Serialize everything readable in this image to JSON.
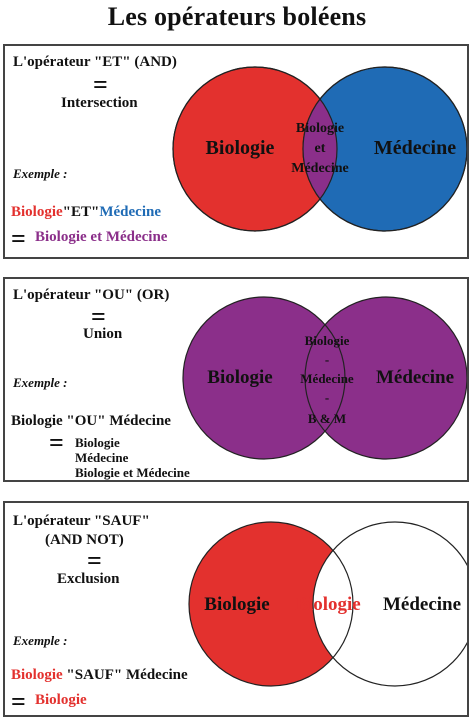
{
  "title": "Les opérateurs boléens",
  "colors": {
    "red": "#e3312e",
    "blue": "#1f6bb5",
    "purple": "#8b2f8a",
    "white": "#ffffff",
    "border": "#333333"
  },
  "panels": [
    {
      "operator": "L'opérateur \"ET\" (AND)",
      "equals": "=",
      "name": "Intersection",
      "example_label": "Exemple :",
      "example": {
        "left": "Biologie",
        "op": "\"ET\"",
        "right": "Médecine"
      },
      "result_equals": "=",
      "result": "Biologie et Médecine",
      "circle_left": "Biologie",
      "circle_right": "Médecine",
      "overlap": [
        "Biologie",
        "et",
        "Médecine"
      ]
    },
    {
      "operator": "L'opérateur \"OU\" (OR)",
      "equals": "=",
      "name": "Union",
      "example_label": "Exemple :",
      "example": {
        "left": "Biologie",
        "op": "\"OU\"",
        "right": "Médecine"
      },
      "result_equals": "=",
      "results": [
        "Biologie",
        "Médecine",
        "Biologie et Médecine"
      ],
      "circle_left": "Biologie",
      "circle_right": "Médecine",
      "overlap": [
        "Biologie",
        "-",
        "Médecine",
        "-",
        "B & M"
      ]
    },
    {
      "operator_line1": "L'opérateur \"SAUF\"",
      "operator_line2": "(AND NOT)",
      "equals": "=",
      "name": "Exclusion",
      "example_label": "Exemple :",
      "example": {
        "left": "Biologie",
        "op": "\"SAUF\"",
        "right": "Médecine"
      },
      "result_equals": "=",
      "result": "Biologie",
      "circle_left": "Biologie",
      "circle_right": "Médecine",
      "overlap": [
        "Biologie"
      ]
    }
  ]
}
